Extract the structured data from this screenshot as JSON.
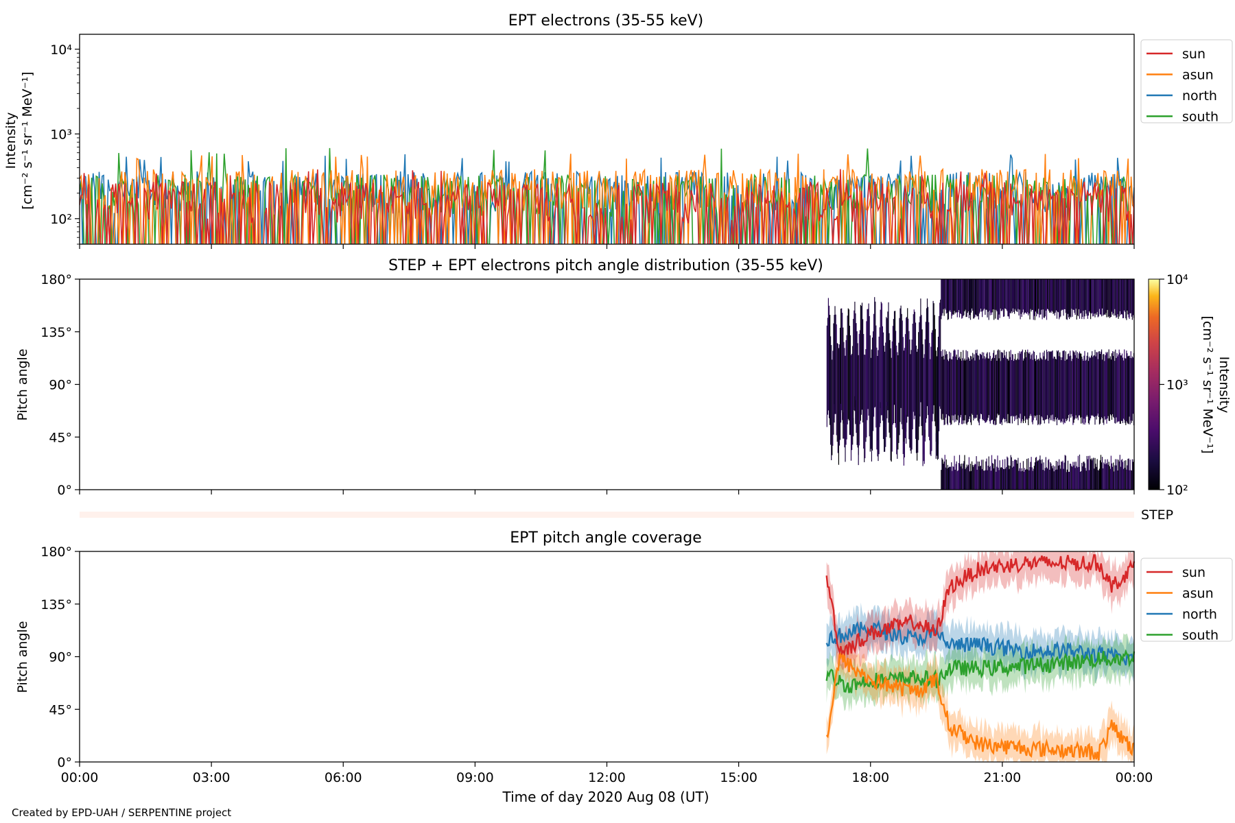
{
  "credit": "Created by EPD-UAH / SERPENTINE project",
  "colors": {
    "sun": "#d62728",
    "asun": "#ff7f0e",
    "north": "#1f77b4",
    "south": "#2ca02c",
    "step_strip": "#fff1ec"
  },
  "chart_data": [
    {
      "type": "line",
      "title": "EPT electrons (35-55 keV)",
      "ylabel": [
        "Intensity",
        "[cm⁻² s⁻¹ sr⁻¹ MeV⁻¹]"
      ],
      "yscale": "log",
      "ylim": [
        50,
        15000
      ],
      "yticks": [
        {
          "v": 100,
          "label": "10²"
        },
        {
          "v": 1000,
          "label": "10³"
        },
        {
          "v": 10000,
          "label": "10⁴"
        }
      ],
      "xlim_hours": [
        0,
        24
      ],
      "legend": {
        "position": "top-right",
        "entries": [
          "sun",
          "asun",
          "north",
          "south"
        ]
      },
      "series": [
        {
          "name": "sun",
          "typical_peak": 250,
          "max": 400
        },
        {
          "name": "asun",
          "typical_peak": 350,
          "max": 600
        },
        {
          "name": "north",
          "typical_peak": 330,
          "max": 580
        },
        {
          "name": "south",
          "typical_peak": 300,
          "max": 720
        }
      ]
    },
    {
      "type": "heatmap",
      "title": "STEP + EPT electrons pitch angle distribution (35-55 keV)",
      "ylabel": "Pitch angle",
      "ylim": [
        0,
        180
      ],
      "yticks": [
        "0°",
        "45°",
        "90°",
        "135°",
        "180°"
      ],
      "data_start_hour": 17.0,
      "colorbar": {
        "label": [
          "Intensity",
          "[cm⁻² s⁻¹ sr⁻¹ MeV⁻¹]"
        ],
        "scale": "log",
        "range": [
          100,
          10000
        ],
        "ticks": [
          {
            "v": 100,
            "label": "10²"
          },
          {
            "v": 1000,
            "label": "10³"
          },
          {
            "v": 10000,
            "label": "10⁴"
          }
        ],
        "colormap": "inferno"
      },
      "strip_label": "STEP"
    },
    {
      "type": "line",
      "title": "EPT pitch angle coverage",
      "ylabel": "Pitch angle",
      "xlabel": "Time of day 2020 Aug 08 (UT)",
      "ylim": [
        0,
        180
      ],
      "yticks": [
        "0°",
        "45°",
        "90°",
        "135°",
        "180°"
      ],
      "xticks": [
        "00:00",
        "03:00",
        "06:00",
        "09:00",
        "12:00",
        "15:00",
        "18:00",
        "21:00",
        "00:00"
      ],
      "legend": {
        "position": "top-right",
        "entries": [
          "sun",
          "asun",
          "north",
          "south"
        ]
      },
      "series": [
        {
          "name": "sun",
          "x": [
            17.0,
            17.3,
            17.6,
            18.0,
            18.5,
            19.0,
            19.5,
            19.8,
            20.5,
            21.5,
            22.5,
            23.2,
            23.5,
            24.0
          ],
          "y": [
            160,
            95,
            100,
            110,
            115,
            120,
            110,
            150,
            165,
            170,
            170,
            170,
            150,
            168
          ],
          "band": 15
        },
        {
          "name": "asun",
          "x": [
            17.0,
            17.3,
            17.6,
            18.0,
            18.5,
            19.0,
            19.5,
            19.8,
            20.5,
            21.5,
            22.5,
            23.2,
            23.5,
            24.0
          ],
          "y": [
            20,
            90,
            80,
            70,
            65,
            60,
            70,
            30,
            15,
            12,
            10,
            8,
            30,
            10
          ],
          "band": 15
        },
        {
          "name": "north",
          "x": [
            17.0,
            17.5,
            18.0,
            18.5,
            19.0,
            19.5,
            19.8,
            20.5,
            21.5,
            22.5,
            23.2,
            23.5,
            24.0
          ],
          "y": [
            105,
            110,
            115,
            110,
            105,
            110,
            100,
            100,
            95,
            95,
            92,
            90,
            88
          ],
          "band": 15
        },
        {
          "name": "south",
          "x": [
            17.0,
            17.5,
            18.0,
            18.5,
            19.0,
            19.5,
            19.8,
            20.5,
            21.5,
            22.5,
            23.2,
            23.5,
            24.0
          ],
          "y": [
            75,
            65,
            70,
            70,
            72,
            70,
            80,
            80,
            82,
            85,
            88,
            88,
            90
          ],
          "band": 15
        }
      ]
    }
  ]
}
